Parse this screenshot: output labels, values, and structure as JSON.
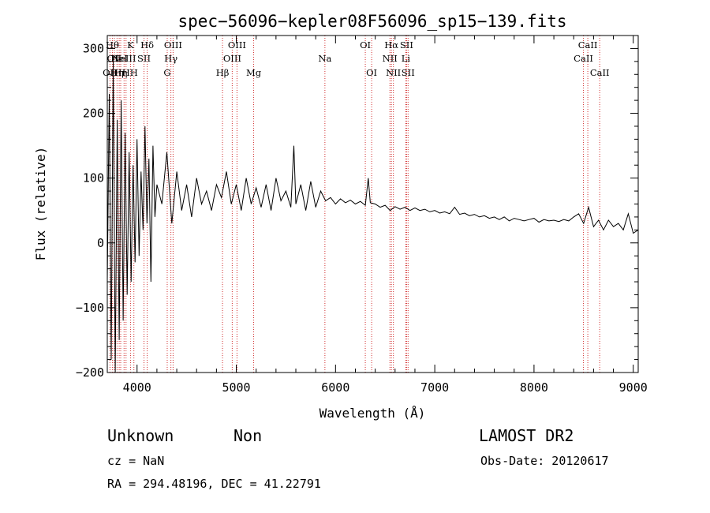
{
  "chart_data": {
    "type": "line",
    "title": "spec−56096−kepler08F56096_sp15−139.fits",
    "xlabel": "Wavelength (Å)",
    "ylabel": "Flux (relative)",
    "xlim": [
      3700,
      9050
    ],
    "ylim": [
      -200,
      320
    ],
    "xticks": [
      4000,
      5000,
      6000,
      7000,
      8000,
      9000
    ],
    "yticks": [
      -200,
      -100,
      0,
      100,
      200,
      300
    ],
    "xtick_labels": [
      "4000",
      "5000",
      "6000",
      "7000",
      "8000",
      "9000"
    ],
    "ytick_labels": [
      "−200",
      "−100",
      "0",
      "100",
      "200",
      "300"
    ],
    "grid": false,
    "series": [
      {
        "x": [
          3700,
          3720,
          3740,
          3760,
          3780,
          3800,
          3820,
          3840,
          3860,
          3880,
          3900,
          3920,
          3940,
          3960,
          3980,
          4000,
          4020,
          4040,
          4060,
          4080,
          4100,
          4120,
          4140,
          4160,
          4180,
          4200,
          4250,
          4300,
          4350,
          4400,
          4450,
          4500,
          4550,
          4600,
          4650,
          4700,
          4750,
          4800,
          4850,
          4900,
          4950,
          5000,
          5050,
          5100,
          5150,
          5200,
          5250,
          5300,
          5350,
          5400,
          5450,
          5500,
          5550,
          5580,
          5600,
          5650,
          5700,
          5750,
          5800,
          5850,
          5900,
          5950,
          6000,
          6050,
          6100,
          6150,
          6200,
          6250,
          6300,
          6330,
          6350,
          6400,
          6450,
          6500,
          6550,
          6600,
          6650,
          6700,
          6750,
          6800,
          6850,
          6900,
          6950,
          7000,
          7050,
          7100,
          7150,
          7200,
          7250,
          7300,
          7350,
          7400,
          7450,
          7500,
          7550,
          7600,
          7650,
          7700,
          7750,
          7800,
          7850,
          7900,
          7950,
          8000,
          8050,
          8100,
          8150,
          8200,
          8250,
          8300,
          8350,
          8400,
          8450,
          8500,
          8550,
          8600,
          8650,
          8700,
          8750,
          8800,
          8850,
          8900,
          8950,
          9000,
          9050
        ],
        "y": [
          -60,
          230,
          -180,
          280,
          -200,
          190,
          -150,
          220,
          -120,
          170,
          -80,
          140,
          -60,
          120,
          -30,
          160,
          -20,
          110,
          20,
          180,
          30,
          130,
          -60,
          150,
          40,
          90,
          60,
          140,
          30,
          110,
          50,
          90,
          40,
          100,
          60,
          80,
          50,
          90,
          70,
          110,
          60,
          90,
          50,
          100,
          60,
          85,
          55,
          90,
          50,
          100,
          65,
          80,
          55,
          150,
          60,
          90,
          50,
          95,
          55,
          80,
          65,
          70,
          60,
          68,
          62,
          66,
          60,
          64,
          58,
          100,
          62,
          60,
          55,
          58,
          50,
          56,
          52,
          55,
          50,
          54,
          50,
          52,
          48,
          50,
          46,
          48,
          45,
          55,
          44,
          46,
          42,
          44,
          40,
          42,
          38,
          40,
          36,
          40,
          34,
          38,
          36,
          34,
          36,
          38,
          32,
          36,
          34,
          35,
          33,
          36,
          34,
          40,
          45,
          30,
          55,
          25,
          35,
          20,
          35,
          25,
          30,
          20,
          45,
          15,
          20
        ]
      }
    ],
    "spectral_lines": [
      {
        "wave": 3727,
        "label": "OII",
        "tier": 2
      },
      {
        "wave": 3751,
        "label": "Hθ",
        "tier": 0
      },
      {
        "wave": 3771,
        "label": "OII",
        "tier": 1
      },
      {
        "wave": 3798,
        "label": "Hη",
        "tier": 2
      },
      {
        "wave": 3820,
        "label": "HeI",
        "tier": 1
      },
      {
        "wave": 3835,
        "label": "Hη",
        "tier": 2
      },
      {
        "wave": 3869,
        "label": "NeIII",
        "tier": 1
      },
      {
        "wave": 3889,
        "label": "H",
        "tier": 2
      },
      {
        "wave": 3934,
        "label": "K",
        "tier": 0
      },
      {
        "wave": 3968,
        "label": "H",
        "tier": 2
      },
      {
        "wave": 4070,
        "label": "SII",
        "tier": 1
      },
      {
        "wave": 4102,
        "label": "Hδ",
        "tier": 0
      },
      {
        "wave": 4304,
        "label": "G",
        "tier": 2
      },
      {
        "wave": 4341,
        "label": "Hγ",
        "tier": 1
      },
      {
        "wave": 4363,
        "label": "OIII",
        "tier": 0
      },
      {
        "wave": 4861,
        "label": "Hβ",
        "tier": 2
      },
      {
        "wave": 4959,
        "label": "OIII",
        "tier": 1
      },
      {
        "wave": 5007,
        "label": "OIII",
        "tier": 0
      },
      {
        "wave": 5175,
        "label": "Mg",
        "tier": 2
      },
      {
        "wave": 5893,
        "label": "Na",
        "tier": 1
      },
      {
        "wave": 6300,
        "label": "OI",
        "tier": 0
      },
      {
        "wave": 6364,
        "label": "OI",
        "tier": 2
      },
      {
        "wave": 6548,
        "label": "NII",
        "tier": 1
      },
      {
        "wave": 6563,
        "label": "Hα",
        "tier": 0
      },
      {
        "wave": 6583,
        "label": "NII",
        "tier": 2
      },
      {
        "wave": 6708,
        "label": "Li",
        "tier": 1
      },
      {
        "wave": 6716,
        "label": "SII",
        "tier": 0
      },
      {
        "wave": 6731,
        "label": "SII",
        "tier": 2
      },
      {
        "wave": 8498,
        "label": "CaII",
        "tier": 1
      },
      {
        "wave": 8542,
        "label": "CaII",
        "tier": 0
      },
      {
        "wave": 8662,
        "label": "CaII",
        "tier": 2
      }
    ]
  },
  "info": {
    "class": "Unknown",
    "subclass": "Non",
    "survey": "LAMOST DR2",
    "redshift": "cz = NaN",
    "obs_date": "Obs-Date: 20120617",
    "coords": "RA = 294.48196, DEC =  41.22791"
  }
}
